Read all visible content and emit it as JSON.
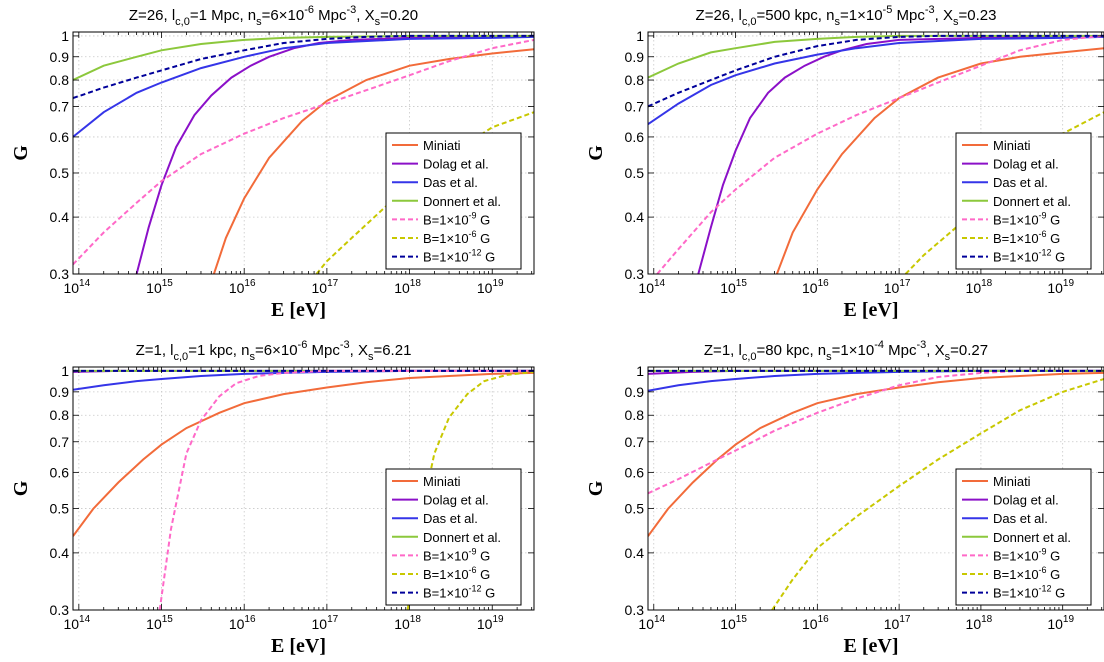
{
  "colors": {
    "miniati": "#f26b3a",
    "dolag": "#8b10c8",
    "das": "#3535e8",
    "donnert": "#8cc83c",
    "b1e9": "#ff69c8",
    "b1e6": "#c8c800",
    "b1e12": "#00009a"
  },
  "legend_labels": [
    "Miniati",
    "Dolag et al.",
    "Das et al.",
    "Donnert et al.",
    "B=1×10",
    "B=1×10",
    "B=1×10"
  ],
  "chart_data": [
    {
      "type": "line",
      "title": {
        "pre": "Z=26, l",
        "sub1": "c,0",
        "mid1": "=1 Mpc, n",
        "sub2": "s",
        "mid2": "=6×10",
        "sup1": "-6",
        "mid3": " Mpc",
        "sup2": "-3",
        "mid4": ", X",
        "sub3": "s",
        "post": "=0.20"
      },
      "xlabel": "E [eV]",
      "ylabel": "G",
      "xscale": "log",
      "yscale": "log",
      "xlim": [
        85000000000000.0,
        3.2e+19
      ],
      "ylim": [
        0.3,
        1.02
      ],
      "grid": true,
      "legend_position": "lower-right",
      "series": [
        {
          "name": "Miniati",
          "style": "solid",
          "colorKey": "miniati",
          "x": [
            4300000000000000.0,
            6000000000000000.0,
            1e+16,
            2e+16,
            5e+16,
            1e+17,
            3e+17,
            1e+18,
            3e+18,
            1e+19,
            3.2e+19
          ],
          "y": [
            0.3,
            0.36,
            0.44,
            0.54,
            0.65,
            0.72,
            0.8,
            0.86,
            0.89,
            0.915,
            0.935
          ]
        },
        {
          "name": "Dolag et al.",
          "style": "solid",
          "colorKey": "dolag",
          "x": [
            500000000000000.0,
            700000000000000.0,
            1000000000000000.0,
            1500000000000000.0,
            2500000000000000.0,
            4000000000000000.0,
            7000000000000000.0,
            1.2e+16,
            2e+16,
            4e+16,
            8e+16,
            2e+17,
            1e+18,
            3.2e+19
          ],
          "y": [
            0.3,
            0.38,
            0.47,
            0.57,
            0.67,
            0.74,
            0.81,
            0.86,
            0.9,
            0.94,
            0.965,
            0.98,
            0.99,
            1.0
          ]
        },
        {
          "name": "Das et al.",
          "style": "solid",
          "colorKey": "das",
          "x": [
            85000000000000.0,
            200000000000000.0,
            500000000000000.0,
            1000000000000000.0,
            3000000000000000.0,
            1e+16,
            3e+16,
            1e+17,
            1e+18,
            1e+19,
            3.2e+19
          ],
          "y": [
            0.6,
            0.68,
            0.75,
            0.79,
            0.85,
            0.9,
            0.94,
            0.965,
            0.985,
            0.99,
            0.995
          ]
        },
        {
          "name": "Donnert et al.",
          "style": "solid",
          "colorKey": "donnert",
          "x": [
            85000000000000.0,
            200000000000000.0,
            500000000000000.0,
            1000000000000000.0,
            3000000000000000.0,
            1e+16,
            3e+16,
            1e+17,
            1e+18,
            3.2e+19
          ],
          "y": [
            0.8,
            0.86,
            0.9,
            0.93,
            0.96,
            0.98,
            0.99,
            0.995,
            1.0,
            1.0
          ]
        },
        {
          "name": "B=1×10-9 G",
          "style": "dashed",
          "colorKey": "b1e9",
          "x": [
            85000000000000.0,
            200000000000000.0,
            500000000000000.0,
            1000000000000000.0,
            3000000000000000.0,
            1e+16,
            3e+16,
            1e+17,
            3e+17,
            1e+18,
            3e+18,
            1e+19,
            3.2e+19
          ],
          "y": [
            0.315,
            0.37,
            0.43,
            0.48,
            0.55,
            0.61,
            0.66,
            0.71,
            0.76,
            0.82,
            0.88,
            0.94,
            0.98
          ]
        },
        {
          "name": "B=1×10-6 G",
          "style": "dashed",
          "colorKey": "b1e6",
          "x": [
            7.5e+16,
            1e+17,
            2e+17,
            5e+17,
            1e+18,
            2e+18,
            5e+18,
            1e+19,
            3.2e+19
          ],
          "y": [
            0.3,
            0.32,
            0.36,
            0.42,
            0.47,
            0.52,
            0.58,
            0.63,
            0.68
          ]
        },
        {
          "name": "B=1×10-12 G",
          "style": "dashed",
          "colorKey": "b1e12",
          "x": [
            85000000000000.0,
            200000000000000.0,
            500000000000000.0,
            1000000000000000.0,
            3000000000000000.0,
            1e+16,
            3e+16,
            1e+17,
            3e+17,
            1e+18,
            3.2e+19
          ],
          "y": [
            0.73,
            0.77,
            0.81,
            0.84,
            0.89,
            0.93,
            0.965,
            0.985,
            0.995,
            1.0,
            1.0
          ]
        }
      ]
    },
    {
      "type": "line",
      "title": {
        "pre": "Z=26, l",
        "sub1": "c,0",
        "mid1": "=500 kpc, n",
        "sub2": "s",
        "mid2": "=1×10",
        "sup1": "-5",
        "mid3": " Mpc",
        "sup2": "-3",
        "mid4": ", X",
        "sub3": "s",
        "post": "=0.23"
      },
      "xlabel": "E [eV]",
      "ylabel": "G",
      "xscale": "log",
      "yscale": "log",
      "xlim": [
        85000000000000.0,
        3.2e+19
      ],
      "ylim": [
        0.3,
        1.02
      ],
      "grid": true,
      "legend_position": "lower-right",
      "series": [
        {
          "name": "Miniati",
          "style": "solid",
          "colorKey": "miniati",
          "x": [
            3200000000000000.0,
            5000000000000000.0,
            1e+16,
            2e+16,
            5e+16,
            1e+17,
            3e+17,
            1e+18,
            3e+18,
            1e+19,
            3.2e+19
          ],
          "y": [
            0.3,
            0.37,
            0.46,
            0.55,
            0.66,
            0.73,
            0.81,
            0.87,
            0.9,
            0.92,
            0.94
          ]
        },
        {
          "name": "Dolag et al.",
          "style": "solid",
          "colorKey": "dolag",
          "x": [
            350000000000000.0,
            500000000000000.0,
            700000000000000.0,
            1000000000000000.0,
            1500000000000000.0,
            2500000000000000.0,
            4000000000000000.0,
            7000000000000000.0,
            1.2e+16,
            2e+16,
            4e+16,
            1e+17,
            1e+18,
            3.2e+19
          ],
          "y": [
            0.3,
            0.38,
            0.47,
            0.56,
            0.66,
            0.75,
            0.81,
            0.86,
            0.9,
            0.93,
            0.96,
            0.98,
            0.99,
            1.0
          ]
        },
        {
          "name": "Das et al.",
          "style": "solid",
          "colorKey": "das",
          "x": [
            85000000000000.0,
            200000000000000.0,
            500000000000000.0,
            1000000000000000.0,
            3000000000000000.0,
            1e+16,
            3e+16,
            1e+17,
            1e+18,
            1e+19,
            3.2e+19
          ],
          "y": [
            0.64,
            0.71,
            0.78,
            0.82,
            0.87,
            0.91,
            0.94,
            0.965,
            0.985,
            0.99,
            0.995
          ]
        },
        {
          "name": "Donnert et al.",
          "style": "solid",
          "colorKey": "donnert",
          "x": [
            85000000000000.0,
            200000000000000.0,
            500000000000000.0,
            1000000000000000.0,
            3000000000000000.0,
            1e+16,
            3e+16,
            1e+17,
            1e+18,
            3.2e+19
          ],
          "y": [
            0.81,
            0.87,
            0.92,
            0.94,
            0.97,
            0.985,
            0.995,
            1.0,
            1.0,
            1.0
          ]
        },
        {
          "name": "B=1×10-9 G",
          "style": "dashed",
          "colorKey": "b1e9",
          "x": [
            110000000000000.0,
            200000000000000.0,
            500000000000000.0,
            1000000000000000.0,
            3000000000000000.0,
            1e+16,
            3e+16,
            1e+17,
            3e+17,
            1e+18,
            3e+18,
            1e+19,
            3.2e+19
          ],
          "y": [
            0.3,
            0.34,
            0.41,
            0.46,
            0.54,
            0.61,
            0.67,
            0.73,
            0.79,
            0.86,
            0.93,
            0.98,
            1.0
          ]
        },
        {
          "name": "B=1×10-6 G",
          "style": "dashed",
          "colorKey": "b1e6",
          "x": [
            1.2e+17,
            2e+17,
            5e+17,
            1e+18,
            2e+18,
            5e+18,
            1e+19,
            3.2e+19
          ],
          "y": [
            0.3,
            0.33,
            0.38,
            0.43,
            0.48,
            0.55,
            0.61,
            0.68
          ]
        },
        {
          "name": "B=1×10-12 G",
          "style": "dashed",
          "colorKey": "b1e12",
          "x": [
            85000000000000.0,
            200000000000000.0,
            500000000000000.0,
            1000000000000000.0,
            3000000000000000.0,
            1e+16,
            3e+16,
            1e+17,
            3e+17,
            1e+18,
            3.2e+19
          ],
          "y": [
            0.7,
            0.75,
            0.8,
            0.84,
            0.9,
            0.95,
            0.98,
            0.995,
            1.0,
            1.0,
            1.0
          ]
        }
      ]
    },
    {
      "type": "line",
      "title": {
        "pre": "Z=1, l",
        "sub1": "c,0",
        "mid1": "=1 kpc, n",
        "sub2": "s",
        "mid2": "=6×10",
        "sup1": "-6",
        "mid3": " Mpc",
        "sup2": "-3",
        "mid4": ", X",
        "sub3": "s",
        "post": "=6.21"
      },
      "xlabel": "E [eV]",
      "ylabel": "G",
      "xscale": "log",
      "yscale": "log",
      "xlim": [
        85000000000000.0,
        3.2e+19
      ],
      "ylim": [
        0.3,
        1.02
      ],
      "grid": true,
      "legend_position": "lower-right",
      "series": [
        {
          "name": "Miniati",
          "style": "solid",
          "colorKey": "miniati",
          "x": [
            85000000000000.0,
            150000000000000.0,
            300000000000000.0,
            600000000000000.0,
            1000000000000000.0,
            2000000000000000.0,
            5000000000000000.0,
            1e+16,
            3e+16,
            1e+17,
            3e+17,
            1e+18,
            3e+18,
            1e+19,
            3.2e+19
          ],
          "y": [
            0.435,
            0.5,
            0.57,
            0.64,
            0.69,
            0.75,
            0.81,
            0.85,
            0.89,
            0.92,
            0.945,
            0.965,
            0.975,
            0.985,
            0.99
          ]
        },
        {
          "name": "Dolag et al.",
          "style": "solid",
          "colorKey": "dolag",
          "x": [
            85000000000000.0,
            300000000000000.0,
            1000000000000000.0,
            1e+16,
            1e+17,
            3.2e+19
          ],
          "y": [
            0.995,
            1.0,
            1.0,
            1.0,
            1.0,
            1.0
          ]
        },
        {
          "name": "Das et al.",
          "style": "solid",
          "colorKey": "das",
          "x": [
            85000000000000.0,
            200000000000000.0,
            500000000000000.0,
            1000000000000000.0,
            3000000000000000.0,
            1e+16,
            3e+16,
            1e+17,
            1e+18,
            3.2e+19
          ],
          "y": [
            0.91,
            0.93,
            0.95,
            0.96,
            0.975,
            0.985,
            0.99,
            0.995,
            1.0,
            1.0
          ]
        },
        {
          "name": "Donnert et al.",
          "style": "solid",
          "colorKey": "donnert",
          "x": [
            85000000000000.0,
            1000000000000000.0,
            1e+17,
            3.2e+19
          ],
          "y": [
            1.0,
            1.0,
            1.0,
            1.0
          ]
        },
        {
          "name": "B=1×10-9 G",
          "style": "dashed",
          "colorKey": "b1e9",
          "x": [
            950000000000000.0,
            1300000000000000.0,
            2000000000000000.0,
            3000000000000000.0,
            5000000000000000.0,
            8000000000000000.0,
            1.5e+16,
            3e+16,
            1e+17,
            3.2e+19
          ],
          "y": [
            0.3,
            0.45,
            0.66,
            0.78,
            0.88,
            0.94,
            0.975,
            0.99,
            1.0,
            1.0
          ]
        },
        {
          "name": "B=1×10-6 G",
          "style": "dashed",
          "colorKey": "b1e6",
          "x": [
            9.5e+17,
            1.3e+18,
            2e+18,
            3e+18,
            5e+18,
            8e+18,
            1.5e+19,
            3.2e+19
          ],
          "y": [
            0.3,
            0.46,
            0.66,
            0.79,
            0.89,
            0.95,
            0.98,
            0.995
          ]
        },
        {
          "name": "B=1×10-12 G",
          "style": "dashed",
          "colorKey": "b1e12",
          "x": [
            85000000000000.0,
            1000000000000000.0,
            1e+17,
            3.2e+19
          ],
          "y": [
            1.0,
            1.0,
            1.0,
            1.0
          ]
        }
      ]
    },
    {
      "type": "line",
      "title": {
        "pre": "Z=1, l",
        "sub1": "c,0",
        "mid1": "=80 kpc, n",
        "sub2": "s",
        "mid2": "=1×10",
        "sup1": "-4",
        "mid3": " Mpc",
        "sup2": "-3",
        "mid4": ", X",
        "sub3": "s",
        "post": "=0.27"
      },
      "xlabel": "E [eV]",
      "ylabel": "G",
      "xscale": "log",
      "yscale": "log",
      "xlim": [
        85000000000000.0,
        3.2e+19
      ],
      "ylim": [
        0.3,
        1.02
      ],
      "grid": true,
      "legend_position": "lower-right",
      "series": [
        {
          "name": "Miniati",
          "style": "solid",
          "colorKey": "miniati",
          "x": [
            85000000000000.0,
            150000000000000.0,
            300000000000000.0,
            600000000000000.0,
            1000000000000000.0,
            2000000000000000.0,
            5000000000000000.0,
            1e+16,
            3e+16,
            1e+17,
            3e+17,
            1e+18,
            3e+18,
            1e+19,
            3.2e+19
          ],
          "y": [
            0.435,
            0.5,
            0.57,
            0.64,
            0.69,
            0.75,
            0.81,
            0.85,
            0.89,
            0.92,
            0.945,
            0.965,
            0.975,
            0.985,
            0.99
          ]
        },
        {
          "name": "Dolag et al.",
          "style": "solid",
          "colorKey": "dolag",
          "x": [
            85000000000000.0,
            300000000000000.0,
            1000000000000000.0,
            1e+16,
            1e+17,
            3.2e+19
          ],
          "y": [
            0.985,
            0.995,
            1.0,
            1.0,
            1.0,
            1.0
          ]
        },
        {
          "name": "Das et al.",
          "style": "solid",
          "colorKey": "das",
          "x": [
            85000000000000.0,
            200000000000000.0,
            500000000000000.0,
            1000000000000000.0,
            3000000000000000.0,
            1e+16,
            3e+16,
            1e+17,
            1e+18,
            3.2e+19
          ],
          "y": [
            0.905,
            0.93,
            0.95,
            0.96,
            0.975,
            0.985,
            0.99,
            0.995,
            1.0,
            1.0
          ]
        },
        {
          "name": "Donnert et al.",
          "style": "solid",
          "colorKey": "donnert",
          "x": [
            85000000000000.0,
            1000000000000000.0,
            1e+17,
            3.2e+19
          ],
          "y": [
            1.0,
            1.0,
            1.0,
            1.0
          ]
        },
        {
          "name": "B=1×10-9 G",
          "style": "dashed",
          "colorKey": "b1e9",
          "x": [
            85000000000000.0,
            200000000000000.0,
            500000000000000.0,
            1000000000000000.0,
            3000000000000000.0,
            1e+16,
            3e+16,
            1e+17,
            3e+17,
            1e+18,
            3e+18,
            3.2e+19
          ],
          "y": [
            0.54,
            0.58,
            0.63,
            0.67,
            0.74,
            0.81,
            0.87,
            0.93,
            0.97,
            0.99,
            1.0,
            1.0
          ]
        },
        {
          "name": "B=1×10-6 G",
          "style": "dashed",
          "colorKey": "b1e6",
          "x": [
            2800000000000000.0,
            5000000000000000.0,
            1e+16,
            3e+16,
            1e+17,
            3e+17,
            1e+18,
            3e+18,
            1e+19,
            3.2e+19
          ],
          "y": [
            0.3,
            0.35,
            0.41,
            0.48,
            0.56,
            0.64,
            0.73,
            0.82,
            0.9,
            0.96
          ]
        },
        {
          "name": "B=1×10-12 G",
          "style": "dashed",
          "colorKey": "b1e12",
          "x": [
            85000000000000.0,
            1000000000000000.0,
            1e+17,
            3.2e+19
          ],
          "y": [
            1.0,
            1.0,
            1.0,
            1.0
          ]
        }
      ]
    }
  ]
}
